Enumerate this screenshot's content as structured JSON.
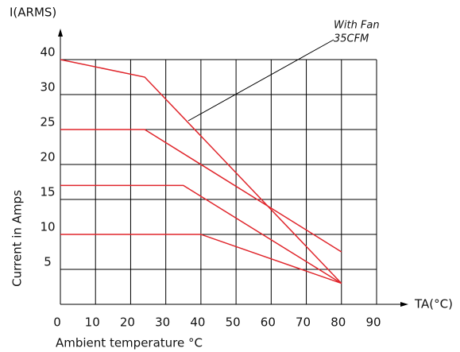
{
  "chart_data": {
    "type": "line",
    "y_axis_title": "I(ARMS)",
    "x_axis_title": "TA(°C)",
    "y_label": "Current  in Amps",
    "x_label": "Ambient temperature °C",
    "annotation": [
      "With Fan",
      "35CFM"
    ],
    "series": [
      {
        "color": "#e0262c",
        "x": [
          0,
          24,
          80
        ],
        "values": [
          40,
          35,
          3
        ]
      },
      {
        "color": "#e0262c",
        "x": [
          0,
          24,
          80
        ],
        "values": [
          25,
          25,
          7.5
        ]
      },
      {
        "color": "#e0262c",
        "x": [
          0,
          35,
          80
        ],
        "values": [
          17,
          17,
          3
        ]
      },
      {
        "color": "#e0262c",
        "x": [
          0,
          40,
          80
        ],
        "values": [
          10,
          10,
          3
        ]
      }
    ],
    "xlim": [
      0,
      90
    ],
    "xticks": [
      0,
      10,
      20,
      30,
      40,
      50,
      60,
      70,
      80,
      90
    ],
    "ylim": [
      0,
      40
    ],
    "yticks": [
      5,
      10,
      15,
      20,
      25,
      30,
      40
    ],
    "grid": true
  }
}
